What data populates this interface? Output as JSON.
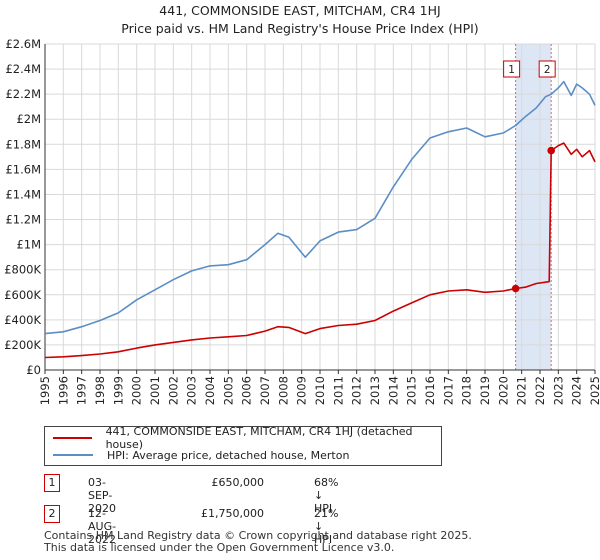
{
  "title_line1": "441, COMMONSIDE EAST, MITCHAM, CR4 1HJ",
  "title_line2": "Price paid vs. HM Land Registry's House Price Index (HPI)",
  "colors": {
    "property": "#cc0000",
    "hpi": "#5b8ec4",
    "band": "#dde6f4",
    "marker_border": "#cc0000"
  },
  "chart_data": {
    "type": "line",
    "title": "441, COMMONSIDE EAST, MITCHAM, CR4 1HJ",
    "subtitle": "Price paid vs. HM Land Registry's House Price Index (HPI)",
    "xlabel": "",
    "ylabel": "",
    "xlim": [
      1995,
      2025
    ],
    "ylim": [
      0,
      2600000
    ],
    "grid": true,
    "ytick_values": [
      0,
      200000,
      400000,
      600000,
      800000,
      1000000,
      1200000,
      1400000,
      1600000,
      1800000,
      2000000,
      2200000,
      2400000,
      2600000
    ],
    "ytick_labels": [
      "£0",
      "£200K",
      "£400K",
      "£600K",
      "£800K",
      "£1M",
      "£1.2M",
      "£1.4M",
      "£1.6M",
      "£1.8M",
      "£2M",
      "£2.2M",
      "£2.4M",
      "£2.6M"
    ],
    "xtick_labels": [
      "1995",
      "1996",
      "1997",
      "1998",
      "1999",
      "2000",
      "2001",
      "2002",
      "2003",
      "2004",
      "2005",
      "2006",
      "2007",
      "2008",
      "2009",
      "2010",
      "2011",
      "2012",
      "2013",
      "2014",
      "2015",
      "2016",
      "2017",
      "2018",
      "2019",
      "2020",
      "2021",
      "2022",
      "2023",
      "2024",
      "2025"
    ],
    "highlight_band": [
      2020.67,
      2022.61
    ],
    "series": [
      {
        "name": "441, COMMONSIDE EAST, MITCHAM, CR4 1HJ (detached house)",
        "x": [
          1995,
          1996,
          1997,
          1998,
          1999,
          2000,
          2001,
          2002,
          2003,
          2004,
          2005,
          2006,
          2007,
          2007.7,
          2008.3,
          2009.2,
          2010,
          2011,
          2012,
          2013,
          2014,
          2015,
          2016,
          2017,
          2018,
          2019,
          2020,
          2020.67,
          2021.2,
          2021.8,
          2022.3,
          2022.5,
          2022.61,
          2023,
          2023.3,
          2023.7,
          2024,
          2024.3,
          2024.7,
          2025
        ],
        "values": [
          100000,
          105000,
          115000,
          128000,
          145000,
          175000,
          200000,
          220000,
          240000,
          255000,
          265000,
          275000,
          310000,
          345000,
          340000,
          290000,
          330000,
          355000,
          365000,
          395000,
          470000,
          535000,
          600000,
          630000,
          640000,
          620000,
          630000,
          650000,
          660000,
          690000,
          700000,
          705000,
          1750000,
          1790000,
          1810000,
          1720000,
          1760000,
          1700000,
          1750000,
          1660000
        ]
      },
      {
        "name": "HPI: Average price, detached house, Merton",
        "x": [
          1995,
          1996,
          1997,
          1998,
          1999,
          2000,
          2001,
          2002,
          2003,
          2004,
          2005,
          2006,
          2007,
          2007.7,
          2008.3,
          2009.2,
          2010,
          2011,
          2012,
          2013,
          2014,
          2015,
          2016,
          2017,
          2018,
          2019,
          2020,
          2020.67,
          2021.2,
          2021.8,
          2022.3,
          2022.61,
          2023,
          2023.3,
          2023.7,
          2024,
          2024.3,
          2024.7,
          2025
        ],
        "values": [
          290000,
          305000,
          345000,
          395000,
          455000,
          560000,
          640000,
          720000,
          790000,
          830000,
          840000,
          880000,
          1000000,
          1090000,
          1060000,
          900000,
          1030000,
          1100000,
          1120000,
          1210000,
          1460000,
          1680000,
          1850000,
          1900000,
          1930000,
          1860000,
          1890000,
          1950000,
          2020000,
          2090000,
          2180000,
          2200000,
          2250000,
          2300000,
          2190000,
          2280000,
          2250000,
          2200000,
          2110000
        ]
      }
    ],
    "markers": [
      {
        "id": "1",
        "x": 2020.67,
        "y": 650000
      },
      {
        "id": "2",
        "x": 2022.61,
        "y": 1750000
      }
    ]
  },
  "legend": [
    {
      "label": "441, COMMONSIDE EAST, MITCHAM, CR4 1HJ (detached house)"
    },
    {
      "label": "HPI: Average price, detached house, Merton"
    }
  ],
  "transactions": [
    {
      "num": "1",
      "date": "03-SEP-2020",
      "price": "£650,000",
      "hpi": "68% ↓ HPI"
    },
    {
      "num": "2",
      "date": "12-AUG-2022",
      "price": "£1,750,000",
      "hpi": "21% ↓ HPI"
    }
  ],
  "footer_line1": "Contains HM Land Registry data © Crown copyright and database right 2025.",
  "footer_line2": "This data is licensed under the Open Government Licence v3.0."
}
